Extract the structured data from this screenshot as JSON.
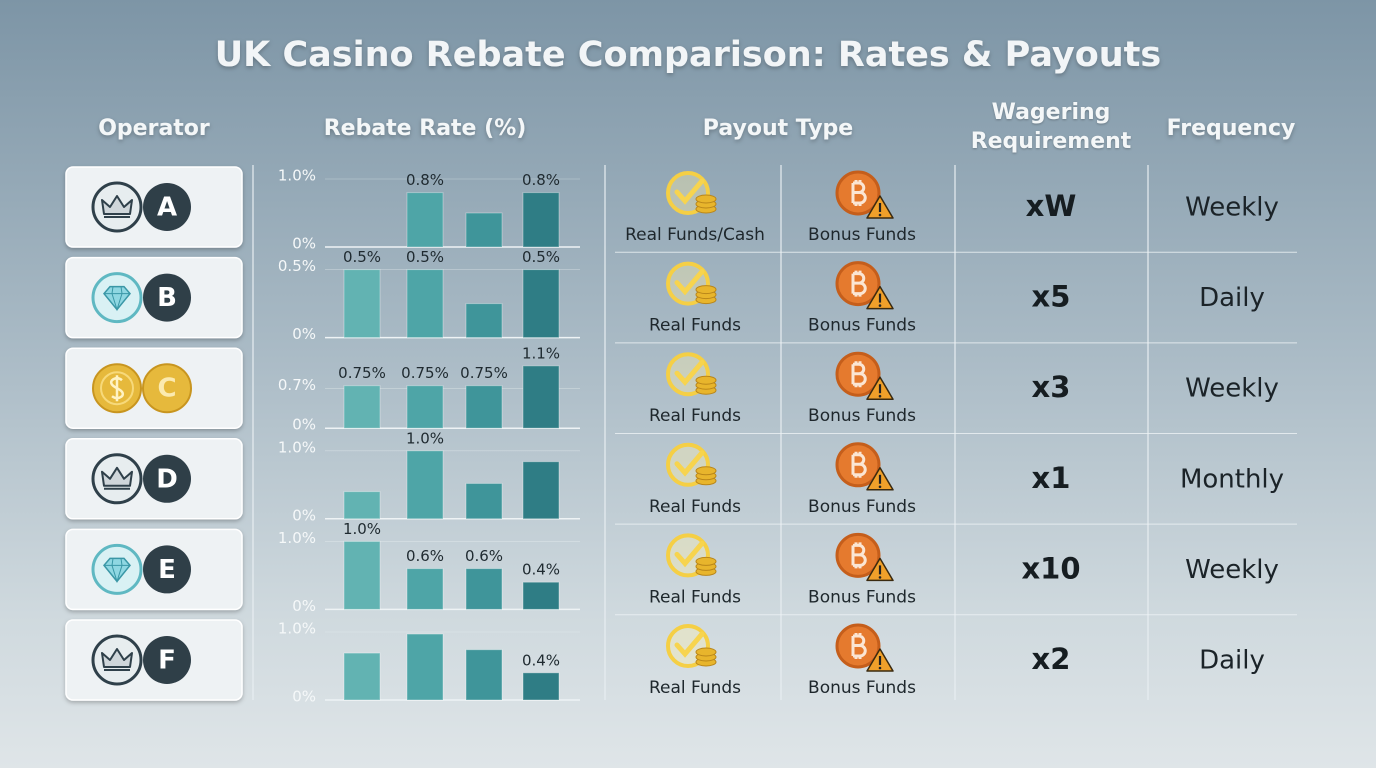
{
  "title": "UK Casino Rebate Comparison: Rates & Payouts",
  "headers": {
    "operator": "Operator",
    "rebate_rate": "Rebate Rate (%)",
    "payout_type": "Payout Type",
    "wagering": "Wagering Requirement",
    "frequency": "Frequency"
  },
  "bar_colors": [
    "#62b3b2",
    "#4ea5a7",
    "#3f959a",
    "#2f7d85"
  ],
  "rows": [
    {
      "operator": "A",
      "rebate_chart": {
        "type": "bar",
        "ylim": [
          0,
          1
        ],
        "yticks": [
          {
            "value": 0,
            "label": "0%"
          },
          {
            "value": 1,
            "label": "1.0%"
          }
        ],
        "values": [
          0.8,
          0.5,
          0.8
        ],
        "value_labels": [
          "0.8%",
          null,
          "0.8%"
        ]
      },
      "payout_primary": "Real Funds/Cash",
      "payout_secondary": "Bonus Funds",
      "wagering": "xW",
      "frequency": "Weekly"
    },
    {
      "operator": "B",
      "rebate_chart": {
        "type": "bar",
        "ylim": [
          0,
          0.5
        ],
        "yticks": [
          {
            "value": 0,
            "label": "0%"
          },
          {
            "value": 0.5,
            "label": "0.5%"
          }
        ],
        "values": [
          0.5,
          0.5,
          0.25,
          0.5
        ],
        "value_labels": [
          "0.5%",
          "0.5%",
          null,
          "0.5%"
        ]
      },
      "payout_primary": "Real Funds",
      "payout_secondary": "Bonus Funds",
      "wagering": "x5",
      "frequency": "Daily"
    },
    {
      "operator": "C",
      "rebate_chart": {
        "type": "bar",
        "ylim": [
          0,
          1.2
        ],
        "yticks": [
          {
            "value": 0,
            "label": "0%"
          },
          {
            "value": 0.7,
            "label": "0.7%"
          }
        ],
        "values": [
          0.75,
          0.75,
          0.75,
          1.1
        ],
        "value_labels": [
          "0.75%",
          "0.75%",
          "0.75%",
          "1.1%"
        ]
      },
      "payout_primary": "Real Funds",
      "payout_secondary": "Bonus Funds",
      "wagering": "x3",
      "frequency": "Weekly"
    },
    {
      "operator": "D",
      "rebate_chart": {
        "type": "bar",
        "ylim": [
          0,
          1
        ],
        "yticks": [
          {
            "value": 0,
            "label": "0%"
          },
          {
            "value": 1,
            "label": "1.0%"
          }
        ],
        "values": [
          0.4,
          1.0,
          0.52,
          0.84
        ],
        "value_labels": [
          null,
          "1.0%",
          null,
          null
        ]
      },
      "payout_primary": "Real Funds",
      "payout_secondary": "Bonus Funds",
      "wagering": "x1",
      "frequency": "Monthly"
    },
    {
      "operator": "E",
      "rebate_chart": {
        "type": "bar",
        "ylim": [
          0,
          1
        ],
        "yticks": [
          {
            "value": 0,
            "label": "0%"
          },
          {
            "value": 1,
            "label": "1.0%"
          }
        ],
        "values": [
          1.0,
          0.6,
          0.6,
          0.4
        ],
        "value_labels": [
          "1.0%",
          "0.6%",
          "0.6%",
          "0.4%"
        ]
      },
      "payout_primary": "Real Funds",
      "payout_secondary": "Bonus Funds",
      "wagering": "x10",
      "frequency": "Weekly"
    },
    {
      "operator": "F",
      "rebate_chart": {
        "type": "bar",
        "ylim": [
          0,
          1
        ],
        "yticks": [
          {
            "value": 0,
            "label": "0%"
          },
          {
            "value": 1,
            "label": "1.0%"
          }
        ],
        "values": [
          0.69,
          0.97,
          0.74,
          0.4
        ],
        "value_labels": [
          null,
          null,
          null,
          "0.4%"
        ]
      },
      "payout_primary": "Real Funds",
      "payout_secondary": "Bonus Funds",
      "wagering": "x2",
      "frequency": "Daily"
    }
  ]
}
